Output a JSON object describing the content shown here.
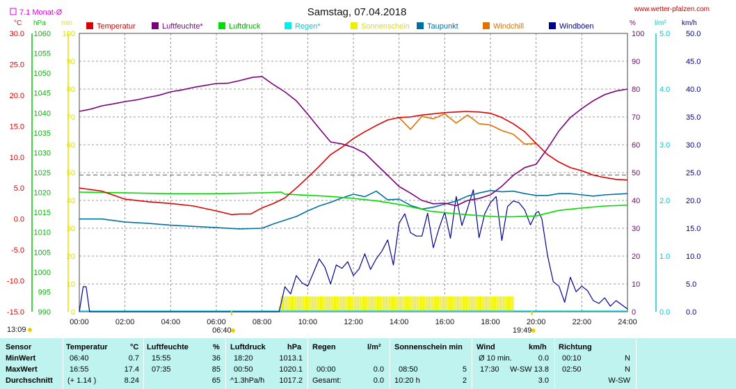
{
  "header": {
    "title": "Samstag, 07.04.2018",
    "site": "www.wetter-pfalzen.com",
    "monthly_avg_label": "7.1 Monat-Ø"
  },
  "colors": {
    "temperature": "#dd0000",
    "humidity": "#7a007a",
    "pressure": "#00dd00",
    "rain": "#00dddd",
    "sunshine": "#eeee00",
    "dewpoint": "#0070a0",
    "windchill": "#e07000",
    "gusts": "#000090",
    "monthly_avg": "#dd00dd"
  },
  "chart_data": {
    "type": "line",
    "title": "Samstag, 07.04.2018",
    "legend": [
      "Temperatur",
      "Luftfeuchte*",
      "Luftdruck",
      "Regen*",
      "Sonnenschein",
      "Taupunkt",
      "Windchill",
      "Windböen"
    ],
    "x_ticks": [
      "00:00",
      "02:00",
      "04:00",
      "06:00",
      "08:00",
      "10:00",
      "12:00",
      "14:00",
      "16:00",
      "18:00",
      "20:00",
      "22:00",
      "24:00"
    ],
    "xlim_hours": [
      0,
      24
    ],
    "sunrise": "06:40",
    "sunset": "19:49",
    "day_start": "13:09",
    "monthly_avg_temp": 7.1,
    "axes": {
      "temp": {
        "unit": "°C",
        "range": [
          -15,
          30
        ],
        "ticks": [
          "30.0",
          "25.0",
          "20.0",
          "15.0",
          "10.0",
          "5.0",
          "0.0",
          "-5.0",
          "-10.0",
          "-15.0"
        ]
      },
      "pressure": {
        "unit": "hPa",
        "range": [
          990,
          1060
        ],
        "ticks": [
          "1060",
          "1055",
          "1050",
          "1045",
          "1040",
          "1035",
          "1030",
          "1025",
          "1020",
          "1015",
          "1010",
          "1005",
          "1000",
          "995",
          "990"
        ]
      },
      "sun_min": {
        "unit": "min",
        "range": [
          0,
          100
        ],
        "ticks": [
          "100",
          "90",
          "80",
          "70",
          "60",
          "50",
          "40",
          "30",
          "20",
          "10",
          "0"
        ]
      },
      "humidity": {
        "unit": "%",
        "range": [
          0,
          100
        ],
        "ticks": [
          "100",
          "90",
          "80",
          "70",
          "60",
          "50",
          "40",
          "30",
          "20",
          "10",
          "0"
        ]
      },
      "rain": {
        "unit": "l/m²",
        "range": [
          0,
          5
        ],
        "ticks": [
          "5.0",
          "4.0",
          "3.0",
          "2.0",
          "1.0",
          "0.0"
        ]
      },
      "wind": {
        "unit": "km/h",
        "range": [
          0,
          50
        ],
        "ticks": [
          "50.0",
          "45.0",
          "40.0",
          "35.0",
          "30.0",
          "25.0",
          "20.0",
          "15.0",
          "10.0",
          "5.0",
          "0.0"
        ]
      }
    },
    "series": [
      {
        "name": "Temperatur",
        "axis": "temp",
        "x": [
          0,
          1,
          2,
          3,
          4,
          5,
          6,
          6.67,
          7,
          7.5,
          8,
          8.5,
          9,
          9.5,
          10,
          10.5,
          11,
          11.5,
          12,
          12.5,
          13,
          13.5,
          14,
          14.5,
          15,
          15.5,
          16,
          16.5,
          16.92,
          17.5,
          18,
          18.5,
          19,
          19.5,
          20,
          20.5,
          21,
          21.5,
          22,
          22.5,
          23,
          23.5,
          24
        ],
        "y": [
          5.0,
          4.5,
          3.2,
          2.8,
          2.5,
          2.1,
          1.3,
          0.7,
          0.8,
          0.8,
          1.8,
          2.5,
          3.4,
          5.0,
          6.7,
          8.5,
          10.4,
          11.6,
          13.0,
          14.1,
          15.1,
          16.0,
          16.4,
          16.5,
          16.8,
          17.0,
          17.2,
          17.3,
          17.4,
          17.3,
          17.1,
          16.4,
          15.4,
          14.1,
          12.2,
          10.4,
          9.2,
          8.3,
          7.8,
          7.1,
          6.7,
          6.4,
          6.3
        ]
      },
      {
        "name": "Luftfeuchte*",
        "axis": "humidity",
        "x": [
          0,
          0.5,
          1,
          1.5,
          2,
          2.5,
          3,
          3.5,
          4,
          4.5,
          5,
          5.5,
          6,
          6.5,
          7,
          7.58,
          8,
          8.5,
          9,
          9.5,
          10,
          10.5,
          11,
          11.5,
          12,
          12.5,
          13,
          13.5,
          14,
          14.5,
          15,
          15.5,
          16,
          16.5,
          17,
          17.5,
          18,
          18.5,
          19,
          19.5,
          20,
          20.5,
          21,
          21.5,
          22,
          22.5,
          23,
          23.5,
          24
        ],
        "y": [
          72,
          72.8,
          74,
          74.7,
          75.5,
          76.1,
          77,
          77.8,
          79,
          79.7,
          80.6,
          81.3,
          82,
          82.1,
          83,
          84.2,
          84.5,
          81.6,
          79,
          75.8,
          71,
          65.9,
          61,
          60.3,
          59,
          57,
          53,
          49,
          45,
          42.6,
          40,
          38.8,
          39,
          38.1,
          40,
          40.7,
          42,
          45.1,
          49,
          51.8,
          53,
          58.7,
          65,
          69.8,
          73,
          75.8,
          78,
          79.3,
          80
        ]
      },
      {
        "name": "Luftdruck",
        "axis": "pressure",
        "x": [
          0,
          1,
          2,
          3,
          4,
          5,
          6,
          7,
          8,
          8.83,
          9,
          10,
          11,
          12,
          13,
          14,
          15,
          15.25,
          16,
          17,
          18,
          18.33,
          19,
          20,
          20.5,
          21,
          22,
          23,
          24
        ],
        "y": [
          1020.1,
          1020.0,
          1019.9,
          1019.8,
          1019.7,
          1019.7,
          1019.7,
          1019.8,
          1019.9,
          1020.1,
          1019.6,
          1019.3,
          1019.0,
          1018.5,
          1017.9,
          1017.0,
          1015.8,
          1015.4,
          1014.9,
          1014.4,
          1014.0,
          1013.9,
          1013.9,
          1014.1,
          1014.8,
          1015.5,
          1016.1,
          1016.6,
          1016.8
        ]
      },
      {
        "name": "Taupunkt",
        "axis": "temp",
        "x": [
          0,
          1,
          2,
          3,
          4,
          5,
          6,
          7,
          8,
          8.5,
          9,
          9.5,
          10,
          10.5,
          11,
          11.5,
          12,
          12.5,
          13,
          13.5,
          14,
          14.5,
          15,
          15.5,
          16,
          16.5,
          17,
          17.5,
          18,
          18.5,
          19,
          19.5,
          20,
          20.5,
          21,
          21.5,
          22,
          22.5,
          23,
          23.5,
          24
        ],
        "y": [
          0.0,
          0.0,
          -0.5,
          -0.7,
          -1.0,
          -1.2,
          -1.4,
          -1.6,
          -1.5,
          -0.8,
          -0.2,
          0.4,
          1.3,
          2.1,
          2.7,
          3.4,
          4.0,
          3.6,
          4.5,
          3.1,
          3.2,
          2.2,
          1.6,
          1.9,
          2.4,
          2.9,
          3.7,
          4.2,
          4.6,
          4.4,
          4.5,
          4.1,
          3.8,
          3.8,
          4.1,
          4.1,
          3.9,
          3.7,
          3.9,
          4.0,
          4.1
        ]
      },
      {
        "name": "Windchill",
        "axis": "temp",
        "x": [
          14,
          14.5,
          15,
          15.5,
          16,
          16.5,
          17,
          17.5,
          18,
          18.5,
          19,
          19.5,
          20
        ],
        "y": [
          16.4,
          14.5,
          16.6,
          16.2,
          17.0,
          15.5,
          16.8,
          15.4,
          15.2,
          14.3,
          13.7,
          12.1,
          12.2
        ]
      },
      {
        "name": "Windböen",
        "axis": "wind",
        "x": [
          0,
          0.17,
          0.3,
          0.45,
          1,
          2,
          3,
          4,
          5,
          6,
          7,
          8,
          8.75,
          9,
          9.25,
          9.5,
          9.75,
          10,
          10.25,
          10.5,
          10.75,
          11,
          11.25,
          11.5,
          11.75,
          12,
          12.25,
          12.5,
          12.75,
          13,
          13.25,
          13.5,
          13.75,
          14,
          14.25,
          14.5,
          14.75,
          15,
          15.25,
          15.5,
          15.75,
          16,
          16.25,
          16.5,
          16.75,
          17,
          17.25,
          17.5,
          17.75,
          18,
          18.25,
          18.5,
          18.75,
          19,
          19.25,
          19.5,
          19.75,
          20,
          20.1,
          20.25,
          20.5,
          20.75,
          21,
          21.25,
          21.5,
          21.75,
          22,
          22.25,
          22.5,
          22.75,
          23,
          23.25,
          23.5,
          24
        ],
        "y": [
          0,
          4.5,
          4.5,
          0,
          0,
          0,
          0,
          0,
          0,
          0,
          0,
          0,
          0,
          4.5,
          3.2,
          6.5,
          5.2,
          4.6,
          7.0,
          9.5,
          8.0,
          5.0,
          8.4,
          7.8,
          9.0,
          6.5,
          7.7,
          10.4,
          7.6,
          9.5,
          10.9,
          12.9,
          8.4,
          15.9,
          17.6,
          14.2,
          13.6,
          13.6,
          17.7,
          11.5,
          15.0,
          17.9,
          13.2,
          20.7,
          15.5,
          18.6,
          21.9,
          13.3,
          17.6,
          19.6,
          20.7,
          12.8,
          18.9,
          19.9,
          19.6,
          18.3,
          15.6,
          17.8,
          18.0,
          16.7,
          10.1,
          5.4,
          4.6,
          1.7,
          6.2,
          3.6,
          4.6,
          3.8,
          2.0,
          1.5,
          2.5,
          1.0,
          2.0,
          0.5
        ]
      }
    ],
    "sunshine_bars": {
      "start": "08:50",
      "end": "19:00",
      "interval_min": 10,
      "value_min": 5
    }
  },
  "stats": {
    "headers": {
      "sensor": "Sensor",
      "temp": "Temperatur",
      "temp_unit": "°C",
      "hum": "Luftfeuchte",
      "hum_unit": "%",
      "press": "Luftdruck",
      "press_unit": "hPa",
      "rain": "Regen",
      "rain_unit": "l/m²",
      "sun": "Sonnenschein min",
      "wind": "Wind",
      "wind_unit": "km/h",
      "dir": "Richtung"
    },
    "rows": [
      {
        "label": "MinWert",
        "temp_time": "06:40",
        "temp_val": "0.7",
        "hum_time": "15:55",
        "hum_val": "36",
        "press_time": "18:20",
        "press_val": "1013.1",
        "rain_time": "",
        "rain_val": "",
        "sun_time": "",
        "sun_val": "",
        "wind_time": "Ø 10 min.",
        "wind_dir": "",
        "wind_val": "0.0",
        "dir_time": "00:10",
        "dir_val": "N"
      },
      {
        "label": "MaxWert",
        "temp_time": "16:55",
        "temp_val": "17.4",
        "hum_time": "07:35",
        "hum_val": "85",
        "press_time": "00:50",
        "press_val": "1020.1",
        "rain_time": "00:00",
        "rain_val": "0.0",
        "sun_time": "08:50",
        "sun_val": "5",
        "wind_time": "17:30",
        "wind_dir": "W-SW",
        "wind_val": "13.8",
        "dir_time": "02:50",
        "dir_val": "N"
      },
      {
        "label": "Durchschnitt",
        "temp_time": "(+ 1.14 )",
        "temp_val": "8.24",
        "hum_time": "",
        "hum_val": "65",
        "press_time": "^1.3hPa/h",
        "press_val": "1017.2",
        "rain_time": "Gesamt:",
        "rain_val": "0.0",
        "sun_time": "10:20 h",
        "sun_val": "2",
        "wind_time": "",
        "wind_dir": "",
        "wind_val": "3.0",
        "dir_time": "",
        "dir_val": "W-SW"
      }
    ]
  }
}
